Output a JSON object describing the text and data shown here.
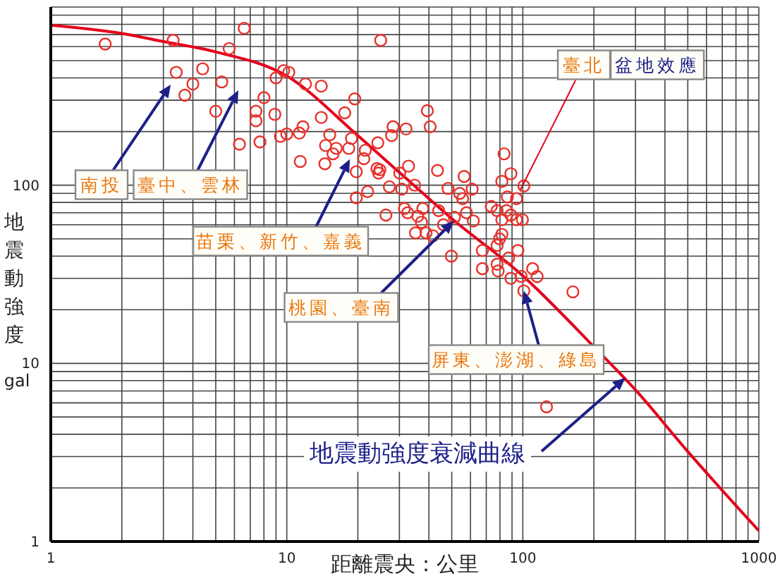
{
  "chart_data": {
    "type": "scatter",
    "xlabel": "距離震央：公里",
    "ylabel": "地震動強度 gal",
    "xlim": [
      1,
      1000
    ],
    "ylim": [
      1,
      1000
    ],
    "xticks": [
      1,
      {
        "value": 2,
        "label": null
      },
      {
        "value": 3,
        "label": null
      },
      {
        "value": 4,
        "label": null
      },
      {
        "value": 5,
        "label": null
      },
      {
        "value": 6,
        "label": null
      },
      {
        "value": 7,
        "label": null
      },
      {
        "value": 8,
        "label": null
      },
      {
        "value": 9,
        "label": null
      },
      10,
      {
        "value": 20,
        "label": null
      },
      {
        "value": 30,
        "label": null
      },
      {
        "value": 40,
        "label": null
      },
      {
        "value": 50,
        "label": null
      },
      {
        "value": 60,
        "label": null
      },
      {
        "value": 70,
        "label": null
      },
      {
        "value": 80,
        "label": null
      },
      {
        "value": 90,
        "label": null
      },
      100,
      {
        "value": 200,
        "label": null
      },
      {
        "value": 300,
        "label": null
      },
      {
        "value": 400,
        "label": null
      },
      {
        "value": 500,
        "label": null
      },
      {
        "value": 600,
        "label": null
      },
      {
        "value": 700,
        "label": null
      },
      {
        "value": 800,
        "label": null
      },
      {
        "value": 900,
        "label": null
      },
      1000
    ],
    "yticks": [
      1,
      {
        "value": 2,
        "label": null
      },
      {
        "value": 3,
        "label": null
      },
      {
        "value": 4,
        "label": null
      },
      {
        "value": 5,
        "label": null
      },
      {
        "value": 6,
        "label": null
      },
      {
        "value": 7,
        "label": null
      },
      {
        "value": 8,
        "label": null
      },
      {
        "value": 9,
        "label": null
      },
      10,
      {
        "value": 20,
        "label": null
      },
      {
        "value": 30,
        "label": null
      },
      {
        "value": 40,
        "label": null
      },
      {
        "value": 50,
        "label": null
      },
      {
        "value": 60,
        "label": null
      },
      {
        "value": 70,
        "label": null
      },
      {
        "value": 80,
        "label": null
      },
      {
        "value": 90,
        "label": null
      },
      100,
      {
        "value": 200,
        "label": null
      },
      {
        "value": 300,
        "label": null
      },
      {
        "value": 400,
        "label": null
      },
      {
        "value": 500,
        "label": null
      },
      {
        "value": 600,
        "label": null
      },
      {
        "value": 700,
        "label": null
      },
      {
        "value": 800,
        "label": null
      },
      {
        "value": 900,
        "label": null
      },
      {
        "value": 1000,
        "label": null
      }
    ],
    "log": "xy",
    "grid": true,
    "series": [
      {
        "marker": "circle",
        "color": "#e8322c",
        "x": [
          1.7,
          3.3,
          6.6,
          5.7,
          25,
          3.4,
          4.4,
          4.0,
          3.7,
          5.3,
          5.0,
          6.3,
          7.7,
          8.0,
          7.4,
          7.4,
          8.9,
          9.0,
          9.7,
          10.2,
          12,
          14,
          19.4,
          17.6,
          14,
          11.7,
          9.4,
          10,
          11.3,
          15.2,
          11.4,
          14.5,
          14.6,
          16.2,
          15.7,
          18.3,
          18.8,
          19.7,
          21.5,
          21.2,
          24.3,
          24.8,
          27.2,
          22,
          19.7,
          26.3,
          28.2,
          32,
          39.4,
          40.5,
          27.8,
          24.1,
          24.5,
          30.1,
          32.8,
          43.5,
          34.8,
          30.7,
          48.2,
          56.4,
          54,
          61,
          55.6,
          31.5,
          32.5,
          37.7,
          44,
          35.9,
          37.2,
          35.1,
          38.9,
          41.6,
          46.1,
          51.3,
          57.7,
          61.7,
          49.8,
          67.4,
          77.8,
          67.4,
          78.6,
          89,
          101,
          110,
          115,
          163,
          83.3,
          81.5,
          89,
          101,
          86,
          94,
          73.5,
          77.8,
          85.3,
          89,
          94,
          99.6,
          81.5,
          81.5,
          79.7,
          95.3,
          87,
          77.8,
          98.4,
          126
        ],
        "values": [
          620,
          650,
          760,
          585,
          650,
          430,
          450,
          370,
          320,
          380,
          260,
          170,
          175,
          310,
          260,
          230,
          250,
          400,
          440,
          430,
          370,
          360,
          305,
          255,
          240,
          213,
          188,
          194,
          196,
          192,
          136,
          132,
          167,
          161,
          150,
          161,
          183,
          119,
          157,
          141,
          173,
          122,
          98,
          92,
          85,
          68,
          213,
          207,
          262,
          213,
          190,
          124,
          117,
          117,
          128,
          121,
          100,
          95,
          96,
          112,
          90,
          95,
          84,
          74,
          70,
          74,
          72,
          67,
          62,
          54,
          54,
          52,
          60,
          66,
          70,
          63,
          40,
          43,
          46,
          34,
          33,
          30,
          25.5,
          34,
          30.7,
          25.2,
          150,
          105,
          116,
          99,
          86,
          84,
          76,
          72,
          72,
          68,
          64,
          64,
          64,
          53,
          50,
          43,
          39,
          36,
          30.8,
          5.7
        ]
      },
      {
        "type": "line",
        "marker": "none",
        "color": "#e3001b",
        "x": [
          1,
          2,
          3,
          5,
          10,
          20,
          30,
          50,
          100,
          200,
          300,
          500,
          1000
        ],
        "values": [
          790,
          710,
          640,
          560,
          410,
          190,
          118,
          65,
          31,
          12.4,
          7.1,
          3.2,
          1.15
        ]
      }
    ],
    "annotations": [
      "南投",
      "臺中、雲林",
      {
        "text": "苗栗、新竹、嘉義",
        "x": 18.5,
        "y": 140
      },
      {
        "text": "桃園、臺南",
        "x": 51,
        "y": 63
      },
      {
        "text": "屏東、澎湖、綠島",
        "x": 101,
        "y": 25.5
      },
      {
        "text": "臺北",
        "x": 97.6,
        "y": 94
      },
      "盆地效應",
      {
        "text": "地震動強度衰減曲線",
        "x": 272,
        "y": 8.3
      }
    ]
  }
}
